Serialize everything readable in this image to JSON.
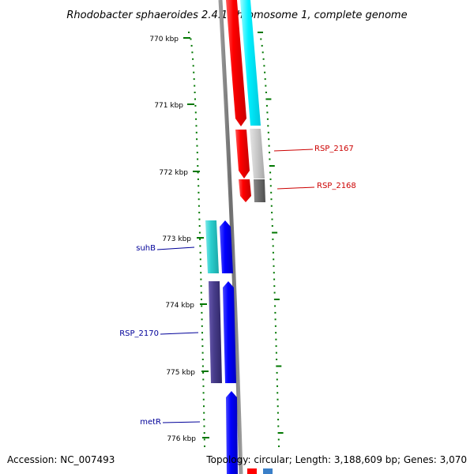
{
  "title": "Rhodobacter sphaeroides 2.4.1 chromosome 1, complete genome",
  "footer": {
    "accession": "Accession: NC_007493",
    "topology": "Topology: circular; Length: 3,188,609 bp; Genes: 3,070"
  },
  "ticks": [
    "770 kbp",
    "771 kbp",
    "772 kbp",
    "773 kbp",
    "774 kbp",
    "775 kbp",
    "776 kbp"
  ],
  "gene_labels": {
    "rsp_2167": "RSP_2167",
    "rsp_2168": "RSP_2168",
    "suhb": "suhB",
    "rsp_2170": "RSP_2170",
    "metr": "metR"
  },
  "colors": {
    "label_red": "#cc0000",
    "label_blue": "#000099",
    "tick_green": "#007700",
    "backbone": "#808080"
  }
}
